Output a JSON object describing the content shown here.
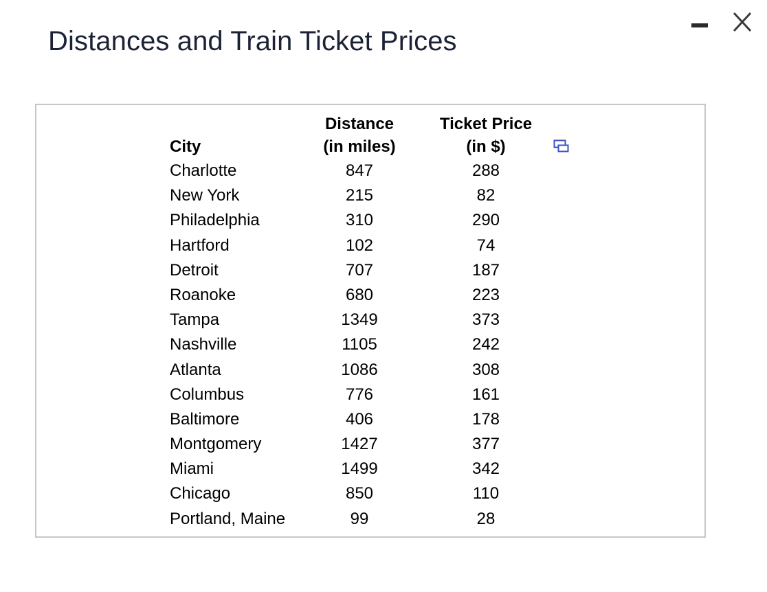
{
  "window": {
    "title": "Distances and Train Ticket Prices"
  },
  "controls": {
    "minimize_icon": "minimize-icon",
    "close_icon": "close-icon",
    "copy_icon": "copy-table-icon",
    "copy_icon_color": "#3b4fc4"
  },
  "table": {
    "headers": {
      "city": "City",
      "distance_line1": "Distance",
      "distance_line2": "(in miles)",
      "price_line1": "Ticket Price",
      "price_line2": "(in $)"
    },
    "rows": [
      {
        "city": "Charlotte",
        "distance": "847",
        "price": "288"
      },
      {
        "city": "New York",
        "distance": "215",
        "price": "82"
      },
      {
        "city": "Philadelphia",
        "distance": "310",
        "price": "290"
      },
      {
        "city": "Hartford",
        "distance": "102",
        "price": "74"
      },
      {
        "city": "Detroit",
        "distance": "707",
        "price": "187"
      },
      {
        "city": "Roanoke",
        "distance": "680",
        "price": "223"
      },
      {
        "city": "Tampa",
        "distance": "1349",
        "price": "373"
      },
      {
        "city": "Nashville",
        "distance": "1105",
        "price": "242"
      },
      {
        "city": "Atlanta",
        "distance": "1086",
        "price": "308"
      },
      {
        "city": "Columbus",
        "distance": "776",
        "price": "161"
      },
      {
        "city": "Baltimore",
        "distance": "406",
        "price": "178"
      },
      {
        "city": "Montgomery",
        "distance": "1427",
        "price": "377"
      },
      {
        "city": "Miami",
        "distance": "1499",
        "price": "342"
      },
      {
        "city": "Chicago",
        "distance": "850",
        "price": "110"
      },
      {
        "city": "Portland, Maine",
        "distance": "99",
        "price": "28"
      }
    ]
  }
}
